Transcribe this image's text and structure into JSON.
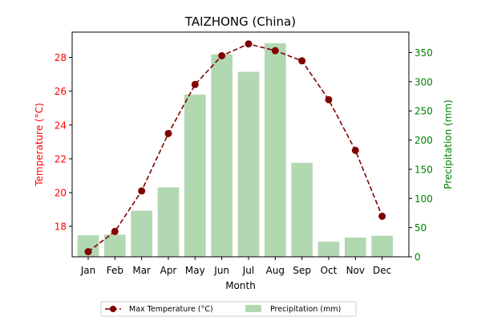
{
  "chart_data": {
    "type": "bar+line",
    "title": "TAIZHONG (China)",
    "xlabel": "Month",
    "categories": [
      "Jan",
      "Feb",
      "Mar",
      "Apr",
      "May",
      "Jun",
      "Jul",
      "Aug",
      "Sep",
      "Oct",
      "Nov",
      "Dec"
    ],
    "series": [
      {
        "name": "Max Temperature (°C)",
        "type": "line",
        "axis": "left",
        "values": [
          16.5,
          17.7,
          20.1,
          23.5,
          26.4,
          28.1,
          28.8,
          28.4,
          27.8,
          25.5,
          22.5,
          18.6
        ]
      },
      {
        "name": "Precipitation (mm)",
        "type": "bar",
        "axis": "right",
        "values": [
          37,
          38,
          79,
          119,
          278,
          347,
          317,
          366,
          161,
          26,
          33,
          36
        ]
      }
    ],
    "y_left": {
      "label": "Temperature (°C)",
      "ylim": [
        16.2,
        29.5
      ],
      "ticks": [
        18,
        20,
        22,
        24,
        26,
        28
      ]
    },
    "y_right": {
      "label": "Precipitation (mm)",
      "ylim": [
        0,
        385
      ],
      "ticks": [
        0,
        50,
        100,
        150,
        200,
        250,
        300,
        350
      ]
    },
    "legend": {
      "placement": "bottom-center",
      "entries": [
        "Max Temperature (°C)",
        "Precipitation (mm)"
      ]
    },
    "colors": {
      "temperature": "#800000",
      "precipitation": "#b2d8b2",
      "left_axis": "#ff0000",
      "right_axis": "#008000"
    }
  }
}
